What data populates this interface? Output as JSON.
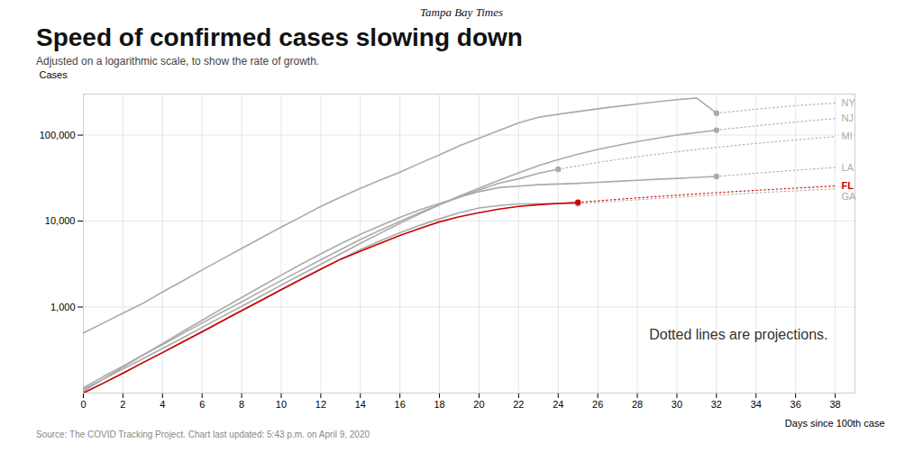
{
  "chart_data": {
    "type": "line",
    "masthead": "Tampa Bay Times",
    "title": "Speed of confirmed cases slowing down",
    "subtitle": "Adjusted on a logarithmic scale, to show the rate of growth.",
    "source": "Source: The COVID Tracking Project. Chart last updated: 5:43 p.m. on April 9, 2020",
    "xlabel": "Days since 100th case",
    "ylabel": "Cases",
    "annotation": "Dotted lines are projections.",
    "log": "y",
    "grid": true,
    "xlim": [
      0,
      39
    ],
    "xticks": [
      0,
      2,
      4,
      6,
      8,
      10,
      12,
      14,
      16,
      18,
      20,
      22,
      24,
      26,
      28,
      30,
      32,
      34,
      36,
      38
    ],
    "ylim": [
      100,
      300000
    ],
    "yticks": [
      {
        "value": 1000,
        "label": "1,000"
      },
      {
        "value": 10000,
        "label": "10,000"
      },
      {
        "value": 100000,
        "label": "100,000"
      }
    ],
    "series": [
      {
        "name": "NY",
        "color": "#aaaaaa",
        "line_style": "solid",
        "marker": "circle",
        "x": [
          0,
          1,
          2,
          3,
          4,
          5,
          6,
          7,
          8,
          9,
          10,
          11,
          12,
          13,
          14,
          15,
          16,
          17,
          18,
          19,
          20,
          21,
          22,
          23,
          24,
          25,
          26,
          27,
          28,
          29,
          30,
          31,
          32
        ],
        "values": [
          500,
          650,
          850,
          1100,
          1500,
          2000,
          2700,
          3600,
          4800,
          6400,
          8500,
          11200,
          14800,
          19000,
          24000,
          30000,
          37000,
          47000,
          59000,
          75000,
          92000,
          113000,
          139000,
          161000,
          175000,
          188000,
          202000,
          216000,
          230000,
          244000,
          258000,
          270000,
          180000
        ],
        "projection": {
          "line_style": "dotted",
          "x": [
            32,
            33,
            34,
            35,
            36,
            37,
            38
          ],
          "values": [
            180000,
            190000,
            200000,
            210000,
            220000,
            228000,
            236000
          ]
        }
      },
      {
        "name": "NJ",
        "color": "#aaaaaa",
        "line_style": "solid",
        "marker": "circle",
        "x": [
          0,
          1,
          2,
          3,
          4,
          5,
          6,
          7,
          8,
          9,
          10,
          11,
          12,
          13,
          14,
          15,
          16,
          17,
          18,
          19,
          20,
          21,
          22,
          23,
          24,
          25,
          26,
          27,
          28,
          29,
          30,
          31,
          32
        ],
        "values": [
          110,
          145,
          190,
          250,
          330,
          435,
          580,
          770,
          1020,
          1350,
          1800,
          2380,
          3150,
          4150,
          5500,
          7200,
          9400,
          12100,
          15400,
          19500,
          24200,
          29800,
          36400,
          44000,
          52000,
          60000,
          68000,
          76000,
          84000,
          92000,
          100000,
          107000,
          114000
        ],
        "projection": {
          "line_style": "dotted",
          "x": [
            32,
            33,
            34,
            35,
            36,
            37,
            38
          ],
          "values": [
            114000,
            121000,
            128000,
            135000,
            142000,
            149000,
            156000
          ]
        }
      },
      {
        "name": "MI",
        "color": "#aaaaaa",
        "line_style": "solid",
        "marker": "circle",
        "x": [
          0,
          1,
          2,
          3,
          4,
          5,
          6,
          7,
          8,
          9,
          10,
          11,
          12,
          13,
          14,
          15,
          16,
          17,
          18,
          19,
          20,
          21,
          22,
          23,
          24
        ],
        "values": [
          115,
          155,
          205,
          275,
          365,
          490,
          650,
          870,
          1150,
          1530,
          2030,
          2680,
          3550,
          4650,
          6100,
          7800,
          9900,
          12500,
          15500,
          19000,
          23000,
          27500,
          31000,
          36000,
          40000
        ],
        "projection": {
          "line_style": "dotted",
          "x": [
            24,
            25,
            26,
            27,
            28,
            29,
            30,
            31,
            32,
            33,
            34,
            35,
            36,
            37,
            38
          ],
          "values": [
            40000,
            44000,
            48000,
            52000,
            56000,
            60000,
            64000,
            68000,
            72000,
            76000,
            80000,
            84000,
            88000,
            92000,
            96000
          ]
        }
      },
      {
        "name": "LA",
        "color": "#aaaaaa",
        "line_style": "solid",
        "marker": "circle",
        "x": [
          0,
          1,
          2,
          3,
          4,
          5,
          6,
          7,
          8,
          9,
          10,
          11,
          12,
          13,
          14,
          15,
          16,
          17,
          18,
          19,
          20,
          21,
          22,
          23,
          24,
          25,
          26,
          27,
          28,
          29,
          30,
          31,
          32
        ],
        "values": [
          105,
          145,
          200,
          275,
          375,
          515,
          700,
          955,
          1290,
          1740,
          2350,
          3150,
          4150,
          5450,
          7000,
          8800,
          11000,
          13500,
          16000,
          19000,
          22000,
          24500,
          25500,
          26500,
          27000,
          27500,
          28200,
          29000,
          29800,
          30600,
          31400,
          32200,
          33000
        ],
        "projection": {
          "line_style": "dotted",
          "x": [
            32,
            33,
            34,
            35,
            36,
            37,
            38
          ],
          "values": [
            33000,
            34500,
            36000,
            37500,
            39000,
            40500,
            42000
          ]
        }
      },
      {
        "name": "GA",
        "color": "#aaaaaa",
        "line_style": "solid",
        "marker": "circle",
        "x": [
          0,
          1,
          2,
          3,
          4,
          5,
          6,
          7,
          8,
          9,
          10,
          11,
          12,
          13,
          14,
          15,
          16,
          17,
          18,
          19,
          20,
          21,
          22,
          23,
          24,
          25
        ],
        "values": [
          100,
          130,
          170,
          225,
          295,
          390,
          515,
          685,
          910,
          1200,
          1590,
          2100,
          2750,
          3600,
          4650,
          5900,
          7300,
          8900,
          10600,
          12500,
          14200,
          15200,
          15800,
          15900,
          16000,
          15900
        ],
        "projection": {
          "line_style": "dotted",
          "x": [
            25,
            26,
            27,
            28,
            29,
            30,
            31,
            32,
            33,
            34,
            35,
            36,
            37,
            38
          ],
          "values": [
            15900,
            16500,
            17100,
            17700,
            18300,
            18900,
            19500,
            20100,
            20700,
            21300,
            21900,
            22500,
            23100,
            23700
          ]
        }
      },
      {
        "name": "FL",
        "color": "#cc0000",
        "line_style": "solid",
        "marker": "circle",
        "x": [
          0,
          1,
          2,
          3,
          4,
          5,
          6,
          7,
          8,
          9,
          10,
          11,
          12,
          13,
          14,
          15,
          16,
          17,
          18,
          19,
          20,
          21,
          22,
          23,
          24,
          25
        ],
        "values": [
          100,
          130,
          170,
          225,
          295,
          390,
          515,
          685,
          910,
          1200,
          1590,
          2100,
          2750,
          3600,
          4450,
          5500,
          6800,
          8200,
          9800,
          11200,
          12500,
          13800,
          14800,
          15500,
          16000,
          16500
        ],
        "projection": {
          "line_style": "dotted",
          "x": [
            25,
            26,
            27,
            28,
            29,
            30,
            31,
            32,
            33,
            34,
            35,
            36,
            37,
            38
          ],
          "values": [
            16500,
            17200,
            17900,
            18600,
            19300,
            20000,
            20700,
            21400,
            22100,
            22800,
            23500,
            24200,
            24900,
            25600
          ]
        }
      }
    ]
  }
}
